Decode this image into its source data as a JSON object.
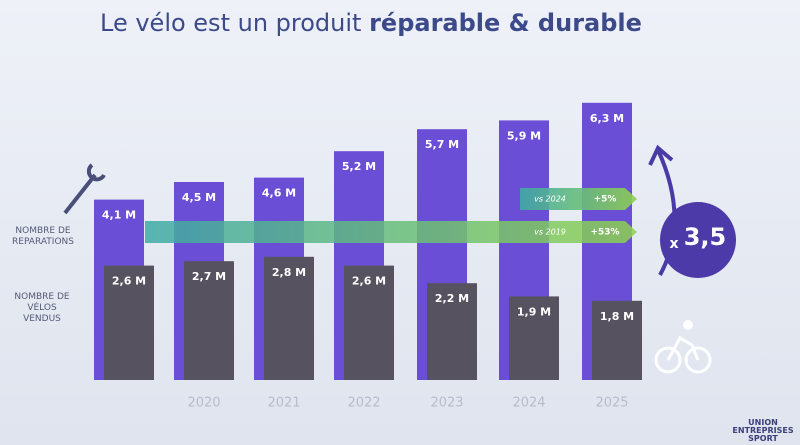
{
  "chart_data": {
    "type": "overlapped-bar",
    "title": "Le vélo est un produit",
    "title_emphasis": "réparable & durable",
    "categories": [
      null,
      "2020",
      "2021",
      "2022",
      "2023",
      "2024",
      "2025"
    ],
    "series": [
      {
        "name": "NOMBRE DE REPARATIONS",
        "color": "#6a4fd6",
        "values": [
          4.1,
          4.5,
          4.6,
          5.2,
          5.7,
          5.9,
          6.3
        ],
        "value_labels": [
          "4,1 M",
          "4,5 M",
          "4,6 M",
          "5,2 M",
          "5,7 M",
          "5,9 M",
          "6,3 M"
        ]
      },
      {
        "name": "NOMBRE DE VÉLOS VENDUS",
        "color": "#57525f",
        "values": [
          2.6,
          2.7,
          2.8,
          2.6,
          2.2,
          1.9,
          1.8
        ],
        "value_labels": [
          "2,6 M",
          "2,7 M",
          "2,8 M",
          "2,6 M",
          "2,2 M",
          "1,9 M",
          "1,8 M"
        ]
      }
    ],
    "annotations": [
      {
        "text": "vs 2024",
        "change": "+5%"
      },
      {
        "text": "vs 2019",
        "change": "+53%"
      }
    ],
    "badge": {
      "prefix": "x",
      "value": "3,5"
    },
    "logo": "UNION ENTREPRISES SPORT"
  }
}
